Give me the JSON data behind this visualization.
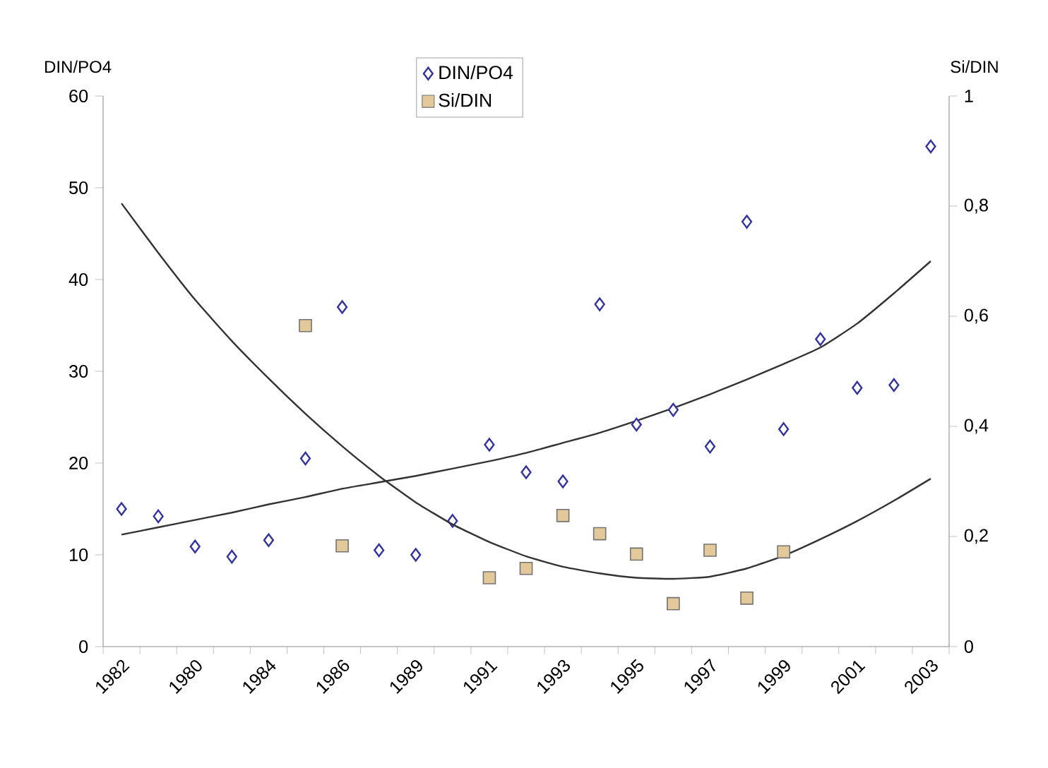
{
  "chart_data": {
    "type": "scatter",
    "ylabel": "DIN/PO4",
    "y2label": "Si/DIN",
    "categories": [
      "1982",
      null,
      "1980",
      null,
      "1984",
      null,
      "1986",
      null,
      "1989",
      null,
      "1991",
      null,
      "1993",
      null,
      "1995",
      null,
      "1997",
      null,
      "1999",
      null,
      "2001",
      null,
      "2003"
    ],
    "series": [
      {
        "name": "DIN/PO4",
        "marker": "diamond",
        "color": "#3333a0",
        "values": [
          15,
          14.2,
          10.9,
          9.8,
          11.6,
          20.5,
          37,
          10.5,
          10,
          13.7,
          22,
          19,
          18,
          37.3,
          24.2,
          25.8,
          21.8,
          46.3,
          23.7,
          33.5,
          28.2,
          28.5,
          54.5
        ]
      },
      {
        "name": "Si/DIN",
        "marker": "square",
        "color": "#e3c99a",
        "axis": "y2",
        "values": [
          null,
          null,
          null,
          null,
          null,
          0.583,
          0.183,
          null,
          null,
          null,
          0.125,
          0.142,
          0.238,
          0.205,
          0.168,
          0.078,
          0.175,
          0.088,
          0.172,
          null,
          null,
          null,
          null
        ]
      },
      {
        "type": "line",
        "marker": "none",
        "color": "#333333",
        "values": [
          12.2,
          13.0,
          13.8,
          14.6,
          15.5,
          16.3,
          17.2,
          17.9,
          18.6,
          19.4,
          20.2,
          21.1,
          22.2,
          23.3,
          24.6,
          26.0,
          27.5,
          29.1,
          30.8,
          32.6,
          35.2,
          38.5,
          42
        ]
      },
      {
        "type": "line",
        "marker": "none",
        "color": "#333333",
        "axis": "y2",
        "values": [
          0.805,
          0.715,
          0.63,
          0.555,
          0.487,
          0.423,
          0.364,
          0.31,
          0.262,
          0.222,
          0.19,
          0.164,
          0.145,
          0.133,
          0.125,
          0.123,
          0.127,
          0.142,
          0.165,
          0.195,
          0.228,
          0.265,
          0.305
        ]
      }
    ],
    "ylim": [
      0,
      60
    ],
    "yticks": [
      0,
      10,
      20,
      30,
      40,
      50,
      60
    ],
    "y2lim": [
      0,
      1
    ],
    "y2ticks": [
      0,
      {
        "value": 0.2,
        "label": "0,2"
      },
      {
        "value": 0.4,
        "label": "0,4"
      },
      {
        "value": 0.6,
        "label": "0,6"
      },
      {
        "value": 0.8,
        "label": "0,8"
      },
      1
    ],
    "grid": false,
    "legend": "top"
  }
}
